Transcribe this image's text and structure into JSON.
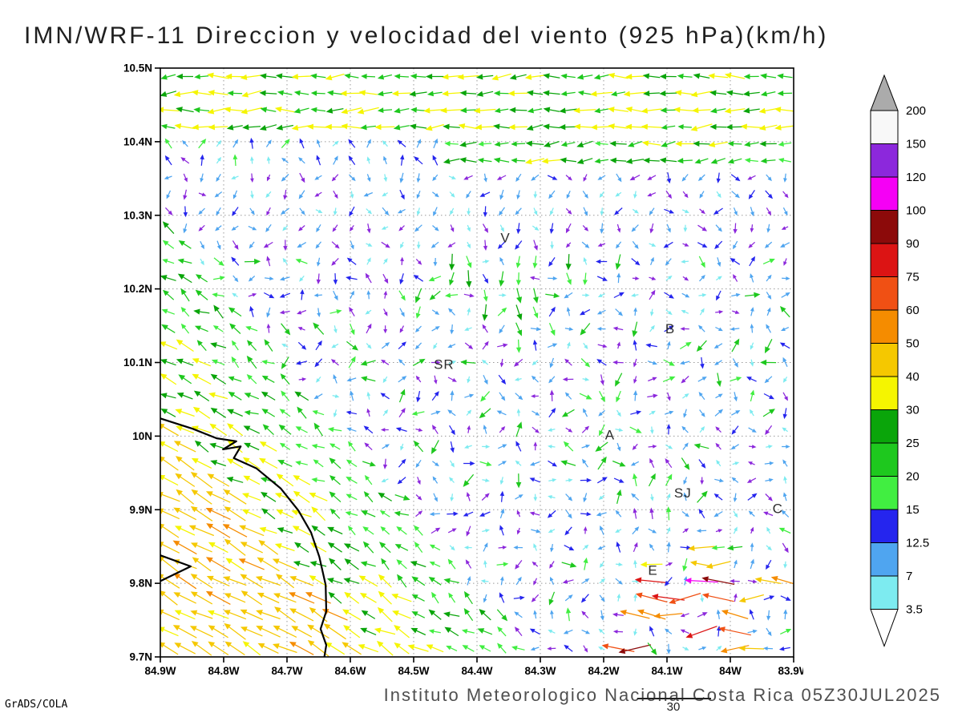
{
  "title": "IMN/WRF-11 Direccion y velocidad del viento (925 hPa)(km/h)",
  "footer": {
    "institute": "Instituto Meteorologico Nacional Costa Rica 05Z30JUL2025",
    "frame": "30",
    "credit": "GrADS/COLA"
  },
  "axes": {
    "x_tick_labels": [
      "84.9W",
      "84.8W",
      "84.7W",
      "84.6W",
      "84.5W",
      "84.4W",
      "84.3W",
      "84.2W",
      "84.1W",
      "84W",
      "83.9W"
    ],
    "y_tick_labels": [
      "10.5N",
      "10.4N",
      "10.3N",
      "10.2N",
      "10.1N",
      "10N",
      "9.9N",
      "9.8N",
      "9.7N"
    ]
  },
  "chart_data": {
    "type": "vector_field",
    "title": "IMN/WRF-11 Direccion y velocidad del viento (925 hPa)(km/h)",
    "variable": "wind direction and speed",
    "level": "925 hPa",
    "units": "km/h",
    "valid_time": "05Z30JUL2025",
    "lon_range_w": [
      84.9,
      83.9
    ],
    "lat_range_n": [
      9.7,
      10.5
    ],
    "grid_interval_deg": 0.1,
    "colorbar": {
      "levels": [
        3.5,
        7,
        12.5,
        15,
        20,
        25,
        30,
        40,
        50,
        60,
        75,
        90,
        100,
        120,
        150,
        200
      ],
      "segment_colors": [
        "#7DEBF0",
        "#4FA5F0",
        "#2525EE",
        "#41EE41",
        "#1EC81E",
        "#0AA50A",
        "#F5F500",
        "#F5C800",
        "#F58C00",
        "#F05014",
        "#DC1414",
        "#8C0A0A",
        "#F500F5",
        "#8C28DC",
        "#F8F8F8"
      ],
      "over_color": "#ABABAB",
      "under_color": "#FFFFFF"
    },
    "stations": [
      {
        "label": "V",
        "lon_w": 84.355,
        "lat_n": 10.27
      },
      {
        "label": "B",
        "lon_w": 84.095,
        "lat_n": 10.146
      },
      {
        "label": "SR",
        "lon_w": 84.452,
        "lat_n": 10.098
      },
      {
        "label": "A",
        "lon_w": 84.19,
        "lat_n": 10.002
      },
      {
        "label": "SJ",
        "lon_w": 84.075,
        "lat_n": 9.923
      },
      {
        "label": "C",
        "lon_w": 83.925,
        "lat_n": 9.902
      },
      {
        "label": "E",
        "lon_w": 84.122,
        "lat_n": 9.818
      }
    ],
    "coastline_lonlat_w_n": [
      [
        [
          84.9,
          10.024
        ],
        [
          84.849,
          10.01
        ],
        [
          84.811,
          9.997
        ],
        [
          84.78,
          9.993
        ],
        [
          84.801,
          9.982
        ],
        [
          84.773,
          9.986
        ],
        [
          84.784,
          9.97
        ],
        [
          84.748,
          9.956
        ],
        [
          84.71,
          9.929
        ],
        [
          84.682,
          9.899
        ],
        [
          84.662,
          9.869
        ],
        [
          84.649,
          9.836
        ],
        [
          84.639,
          9.798
        ],
        [
          84.638,
          9.762
        ],
        [
          84.647,
          9.738
        ],
        [
          84.638,
          9.716
        ],
        [
          84.641,
          9.7
        ]
      ],
      [
        [
          84.9,
          9.838
        ],
        [
          84.852,
          9.823
        ],
        [
          84.9,
          9.803
        ]
      ]
    ],
    "wind_field": {
      "grid_cols": 38,
      "grid_rows": 35,
      "seed": 20250730,
      "arrow_scale": {
        "base": 5,
        "per_kmh": 0.55,
        "max": 40
      },
      "violet_color": "#8C28DC",
      "coast_diag": {
        "v_offset": 0.4,
        "v_scale": 1.3
      },
      "regions": [
        {
          "name": "north-strong-band",
          "v": [
            0,
            0.11
          ],
          "speed": [
            20,
            40
          ],
          "dir": [
            168,
            196
          ]
        },
        {
          "name": "north-band-right",
          "v": [
            0.11,
            0.175
          ],
          "u": [
            0,
            0.56
          ],
          "speed": [
            18,
            34
          ],
          "dir": [
            168,
            200
          ]
        },
        {
          "name": "north-band-left",
          "v": [
            0.11,
            0.175
          ],
          "u": [
            0.56,
            1
          ],
          "speed": [
            5,
            16
          ],
          "dir": [
            40,
            150
          ],
          "violet": 0.15
        },
        {
          "name": "pacific-coast-strong",
          "diag": [
            0.13,
            9
          ],
          "speed": [
            38,
            52
          ],
          "dir": [
            140,
            162
          ]
        },
        {
          "name": "pacific-coast-mid",
          "diag": [
            0,
            0.13
          ],
          "speed": [
            24,
            38
          ],
          "dir": [
            134,
            166
          ]
        },
        {
          "name": "pacific-coast-fringe",
          "diag": [
            -0.12,
            0
          ],
          "speed": [
            15,
            26
          ],
          "dir": [
            122,
            172
          ]
        },
        {
          "name": "southeast-jet",
          "u": [
            0,
            0.3
          ],
          "v": [
            0.86,
            1
          ],
          "prob": 0.38,
          "speed": [
            45,
            115
          ],
          "dir": [
            162,
            200
          ]
        },
        {
          "name": "escazu-gusts",
          "u": [
            0.08,
            0.26
          ],
          "v": [
            0.76,
            0.86
          ],
          "prob": 0.3,
          "speed": [
            38,
            62
          ],
          "dir": [
            168,
            195
          ]
        },
        {
          "name": "central-down-cluster",
          "u": [
            0.35,
            0.56
          ],
          "v": [
            0.32,
            0.47
          ],
          "prob": 0.45,
          "speed": [
            16,
            30
          ],
          "dir": [
            245,
            295
          ]
        },
        {
          "name": "upper-valley",
          "v": [
            0.175,
            0.3
          ],
          "speed": [
            4,
            14
          ],
          "dir": [
            200,
            340
          ],
          "violet": 0.28
        },
        {
          "name": "scattered-green",
          "prob": 0.16,
          "speed": [
            15,
            25
          ],
          "dir": [
            0,
            360
          ]
        },
        {
          "name": "interior-weak",
          "speed": [
            4,
            15
          ],
          "dir": [
            0,
            360
          ],
          "violet": 0.3
        }
      ]
    }
  }
}
